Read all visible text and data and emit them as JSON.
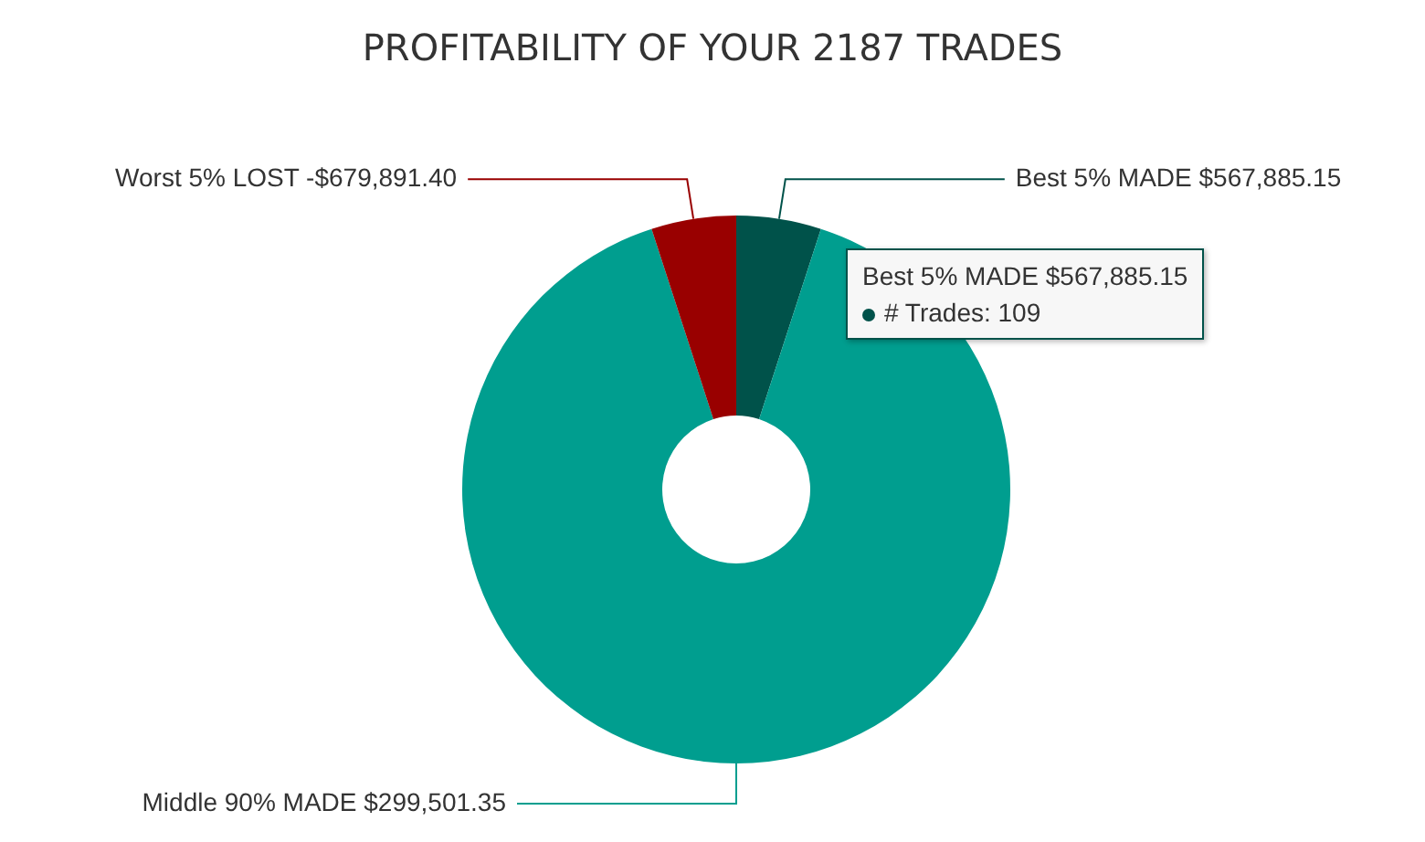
{
  "chart_data": {
    "type": "donut",
    "title": "PROFITABILITY OF YOUR 2187 TRADES",
    "categories": [
      "Best 5% MADE $567,885.15",
      "Middle 90% MADE $299,501.35",
      "Worst 5% LOST -$679,891.40"
    ],
    "values": [
      5,
      90,
      5
    ],
    "colors": [
      "#00524a",
      "#009e8f",
      "#990000"
    ],
    "annotations": [
      "Best 5% MADE $567,885.15",
      "# Trades: 109"
    ]
  }
}
